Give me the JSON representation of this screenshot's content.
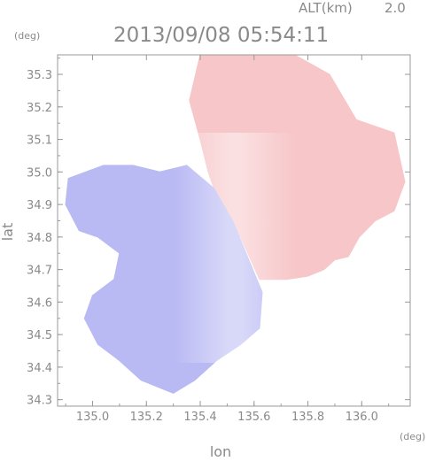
{
  "header": {
    "altitude_label": "ALT(km)",
    "altitude_value": "2.0",
    "timestamp": "2013/09/08 05:54:11"
  },
  "chart_data": {
    "type": "heatmap",
    "title": "",
    "x_unit": "(deg)",
    "y_unit": "(deg)",
    "xlabel": "lon",
    "ylabel": "lat",
    "x_ticks": [
      "135.0",
      "135.2",
      "135.4",
      "135.6",
      "135.8",
      "136.0"
    ],
    "y_ticks": [
      "34.3",
      "34.4",
      "34.5",
      "34.6",
      "34.7",
      "34.8",
      "34.9",
      "35.0",
      "35.1",
      "35.2",
      "35.3"
    ],
    "xlim": [
      134.87,
      136.18
    ],
    "ylim": [
      34.28,
      35.36
    ],
    "colors": {
      "negative": "#b9b9f4",
      "negative_light": "#d7d9f6",
      "positive": "#f7c6c8",
      "positive_light": "#f9dcdc",
      "axis": "#9a9a9a"
    },
    "regions": [
      {
        "name": "positive",
        "color": "#f7c6c8",
        "polygon": [
          [
            135.4,
            35.36
          ],
          [
            135.75,
            35.36
          ],
          [
            135.88,
            35.3
          ],
          [
            135.98,
            35.16
          ],
          [
            136.12,
            35.12
          ],
          [
            136.16,
            34.97
          ],
          [
            136.12,
            34.88
          ],
          [
            136.05,
            34.85
          ],
          [
            135.99,
            34.8
          ],
          [
            135.95,
            34.74
          ],
          [
            135.9,
            34.73
          ],
          [
            135.86,
            34.7
          ],
          [
            135.8,
            34.68
          ],
          [
            135.72,
            34.67
          ],
          [
            135.62,
            34.67
          ],
          [
            135.55,
            34.8
          ],
          [
            135.48,
            34.88
          ],
          [
            135.43,
            35.0
          ],
          [
            135.4,
            35.1
          ],
          [
            135.36,
            35.22
          ]
        ]
      },
      {
        "name": "negative",
        "color": "#b9b9f4",
        "polygon": [
          [
            134.91,
            34.98
          ],
          [
            135.04,
            35.02
          ],
          [
            135.15,
            35.02
          ],
          [
            135.25,
            35.0
          ],
          [
            135.35,
            35.02
          ],
          [
            135.45,
            34.95
          ],
          [
            135.52,
            34.85
          ],
          [
            135.58,
            34.73
          ],
          [
            135.63,
            34.63
          ],
          [
            135.62,
            34.52
          ],
          [
            135.55,
            34.47
          ],
          [
            135.46,
            34.42
          ],
          [
            135.38,
            34.36
          ],
          [
            135.3,
            34.32
          ],
          [
            135.18,
            34.36
          ],
          [
            135.1,
            34.42
          ],
          [
            135.02,
            34.47
          ],
          [
            134.97,
            34.55
          ],
          [
            135.0,
            34.62
          ],
          [
            135.08,
            34.67
          ],
          [
            135.1,
            34.75
          ],
          [
            135.02,
            34.8
          ],
          [
            134.95,
            34.82
          ],
          [
            134.9,
            34.9
          ]
        ]
      }
    ]
  }
}
